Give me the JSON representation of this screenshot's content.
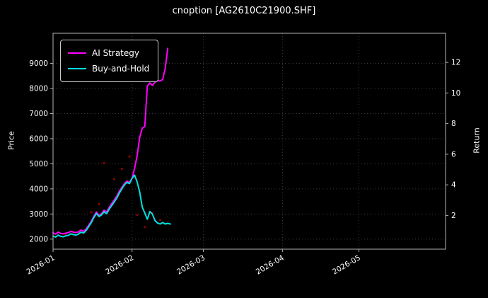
{
  "title": "cnoption [AG2610C21900.SHF]",
  "colors": {
    "background": "#000000",
    "grid": "#3c3c3c",
    "axis": "#b3b3b3",
    "text": "#ffffff",
    "legend_border": "#c8c8c8"
  },
  "legend": {
    "position": "upper-left"
  },
  "chart_data": {
    "type": "line",
    "title": "cnoption [AG2610C21900.SHF]",
    "xlabel": "",
    "ylabel_left": "Price",
    "ylabel_right": "Return",
    "grid": "dotted",
    "x_domain": [
      0,
      154
    ],
    "x_ticks": [
      {
        "day": 0,
        "label": "2026-01"
      },
      {
        "day": 31,
        "label": "2026-02"
      },
      {
        "day": 59,
        "label": "2026-03"
      },
      {
        "day": 90,
        "label": "2026-04"
      },
      {
        "day": 120,
        "label": "2026-05"
      }
    ],
    "y_left_domain": [
      1600,
      10200
    ],
    "y_left_ticks": [
      2000,
      3000,
      4000,
      5000,
      6000,
      7000,
      8000,
      9000
    ],
    "y_right_domain": [
      -0.2,
      13.9
    ],
    "y_right_ticks": [
      2,
      4,
      6,
      8,
      10,
      12
    ],
    "series": [
      {
        "name": "AI Strategy",
        "color": "#ff00ff",
        "points": [
          [
            0,
            2250
          ],
          [
            1,
            2200
          ],
          [
            2,
            2280
          ],
          [
            3,
            2230
          ],
          [
            4,
            2210
          ],
          [
            5,
            2240
          ],
          [
            6,
            2260
          ],
          [
            7,
            2310
          ],
          [
            8,
            2280
          ],
          [
            9,
            2260
          ],
          [
            10,
            2290
          ],
          [
            11,
            2360
          ],
          [
            12,
            2310
          ],
          [
            13,
            2410
          ],
          [
            14,
            2560
          ],
          [
            15,
            2710
          ],
          [
            16,
            2910
          ],
          [
            17,
            3080
          ],
          [
            18,
            2950
          ],
          [
            19,
            3010
          ],
          [
            20,
            3150
          ],
          [
            21,
            3080
          ],
          [
            22,
            3260
          ],
          [
            23,
            3410
          ],
          [
            24,
            3560
          ],
          [
            25,
            3710
          ],
          [
            26,
            3910
          ],
          [
            27,
            4060
          ],
          [
            28,
            4210
          ],
          [
            29,
            4310
          ],
          [
            30,
            4260
          ],
          [
            31,
            4420
          ],
          [
            32,
            4820
          ],
          [
            33,
            5320
          ],
          [
            34,
            6050
          ],
          [
            35,
            6420
          ],
          [
            36,
            6480
          ],
          [
            37,
            8100
          ],
          [
            38,
            8220
          ],
          [
            39,
            8120
          ],
          [
            40,
            8260
          ],
          [
            41,
            8310
          ],
          [
            42,
            8300
          ],
          [
            43,
            8360
          ],
          [
            44,
            8800
          ],
          [
            45,
            9600
          ]
        ]
      },
      {
        "name": "Buy-and-Hold",
        "color": "#00e0e0",
        "points": [
          [
            0,
            2120
          ],
          [
            1,
            2080
          ],
          [
            2,
            2160
          ],
          [
            3,
            2110
          ],
          [
            4,
            2090
          ],
          [
            5,
            2130
          ],
          [
            6,
            2150
          ],
          [
            7,
            2210
          ],
          [
            8,
            2180
          ],
          [
            9,
            2160
          ],
          [
            10,
            2200
          ],
          [
            11,
            2280
          ],
          [
            12,
            2240
          ],
          [
            13,
            2350
          ],
          [
            14,
            2500
          ],
          [
            15,
            2660
          ],
          [
            16,
            2860
          ],
          [
            17,
            3020
          ],
          [
            18,
            2900
          ],
          [
            19,
            2960
          ],
          [
            20,
            3090
          ],
          [
            21,
            3010
          ],
          [
            22,
            3190
          ],
          [
            23,
            3330
          ],
          [
            24,
            3480
          ],
          [
            25,
            3630
          ],
          [
            26,
            3830
          ],
          [
            27,
            4000
          ],
          [
            28,
            4160
          ],
          [
            29,
            4260
          ],
          [
            30,
            4210
          ],
          [
            31,
            4420
          ],
          [
            32,
            4550
          ],
          [
            33,
            4280
          ],
          [
            34,
            3880
          ],
          [
            35,
            3280
          ],
          [
            36,
            3040
          ],
          [
            37,
            2790
          ],
          [
            38,
            3100
          ],
          [
            39,
            2990
          ],
          [
            40,
            2740
          ],
          [
            41,
            2640
          ],
          [
            42,
            2600
          ],
          [
            43,
            2660
          ],
          [
            44,
            2600
          ],
          [
            45,
            2630
          ],
          [
            46,
            2600
          ]
        ]
      }
    ],
    "markers": {
      "name": "trade-dots",
      "color": "#8b0000",
      "points": [
        [
          5,
          2180
        ],
        [
          10,
          2260
        ],
        [
          15,
          3070
        ],
        [
          18,
          3400
        ],
        [
          20,
          5030
        ],
        [
          24,
          4390
        ],
        [
          27,
          4800
        ],
        [
          30,
          5290
        ],
        [
          33,
          2960
        ],
        [
          36,
          2480
        ],
        [
          39,
          3040
        ],
        [
          42,
          2760
        ]
      ]
    }
  }
}
